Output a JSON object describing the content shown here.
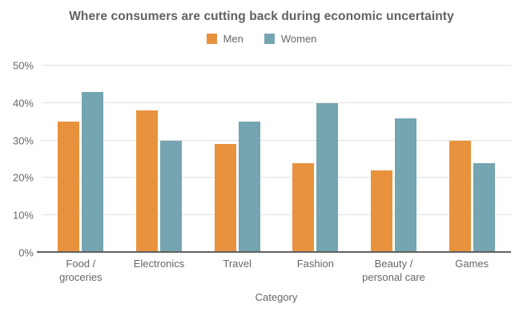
{
  "title": "Where consumers are cutting back during economic uncertainty",
  "colors": {
    "men": "#E8923E",
    "women": "#74A5B0",
    "text": "#666666",
    "title_text": "#616161",
    "gridline": "#E3E3E3",
    "baseline": "#616161",
    "background": "#FFFFFF"
  },
  "chart_data": {
    "type": "bar",
    "title": "Where consumers are cutting back during economic uncertainty",
    "categories": [
      "Food /\ngroceries",
      "Electronics",
      "Travel",
      "Fashion",
      "Beauty /\npersonal care",
      "Games"
    ],
    "series": [
      {
        "name": "Men",
        "color": "#E8923E",
        "values": [
          35,
          38,
          29,
          24,
          22,
          30
        ]
      },
      {
        "name": "Women",
        "color": "#74A5B0",
        "values": [
          43,
          30,
          35,
          40,
          36,
          24
        ]
      }
    ],
    "xlabel": "Category",
    "ylabel": "",
    "ylim": [
      0,
      50
    ],
    "yticks": [
      0,
      10,
      20,
      30,
      40,
      50
    ],
    "ytick_suffix": "%",
    "grid": true,
    "legend_position": "top"
  }
}
